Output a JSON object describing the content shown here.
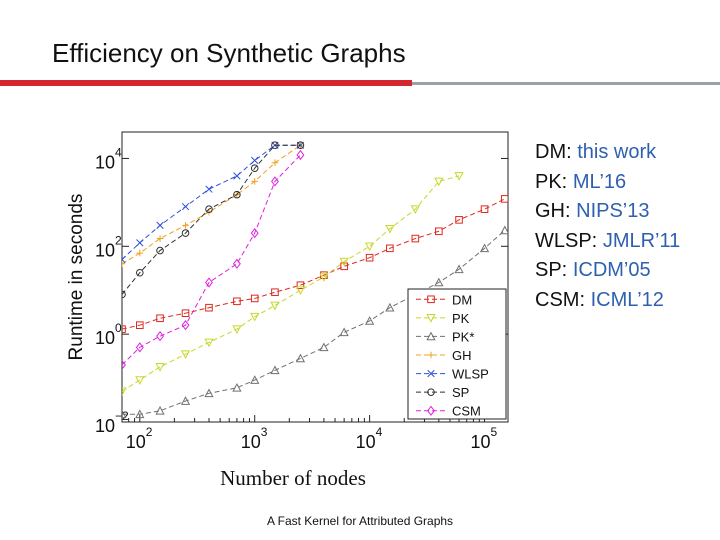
{
  "slide": {
    "title": "Efficiency on Synthetic Graphs",
    "footer": "A Fast Kernel for Attributed Graphs",
    "accent_color": "#d2282e"
  },
  "references": [
    {
      "method": "DM:",
      "source": "this work"
    },
    {
      "method": "PK:",
      "source": "ML’16"
    },
    {
      "method": "GH:",
      "source": "NIPS’13"
    },
    {
      "method": "WLSP:",
      "source": "JMLR’11"
    },
    {
      "method": "SP:",
      "source": "ICDM’05"
    },
    {
      "method": "CSM:",
      "source": "ICML’12"
    }
  ],
  "chart_data": {
    "type": "line",
    "xscale": "log",
    "yscale": "log",
    "xlabel": "Number of nodes",
    "ylabel": "Runtime in seconds",
    "xlim": [
      70,
      160000
    ],
    "ylim": [
      0.01,
      40000
    ],
    "x_ticks": [
      {
        "value": 100,
        "base": "10",
        "exp": "2"
      },
      {
        "value": 1000,
        "base": "10",
        "exp": "3"
      },
      {
        "value": 10000,
        "base": "10",
        "exp": "4"
      },
      {
        "value": 100000,
        "base": "10",
        "exp": "5"
      }
    ],
    "y_ticks": [
      {
        "value": 0.01,
        "base": "10",
        "exp": "−2"
      },
      {
        "value": 1,
        "base": "10",
        "exp": "0"
      },
      {
        "value": 100,
        "base": "10",
        "exp": "2"
      },
      {
        "value": 10000,
        "base": "10",
        "exp": "4"
      }
    ],
    "legend_position": "bottom-right",
    "series": [
      {
        "name": "DM",
        "color": "#e0281e",
        "marker": "square",
        "x": [
          70,
          100,
          150,
          250,
          400,
          700,
          1000,
          1500,
          2500,
          4000,
          6000,
          10000,
          15000,
          25000,
          40000,
          60000,
          100000,
          150000
        ],
        "y": [
          1.3,
          1.6,
          2.3,
          3.0,
          4.0,
          5.6,
          6.5,
          9.0,
          13,
          22,
          35,
          55,
          90,
          150,
          220,
          400,
          700,
          1200
        ]
      },
      {
        "name": "PK",
        "color": "#c8d828",
        "marker": "triangle-down",
        "x": [
          70,
          100,
          150,
          250,
          400,
          700,
          1000,
          1500,
          2500,
          4000,
          6000,
          10000,
          15000,
          25000,
          40000,
          60000
        ],
        "y": [
          0.05,
          0.09,
          0.18,
          0.35,
          0.65,
          1.3,
          2.5,
          4.5,
          10,
          20,
          45,
          100,
          250,
          700,
          3000,
          4000
        ]
      },
      {
        "name": "PK*",
        "color": "#707070",
        "marker": "triangle-up",
        "x": [
          70,
          100,
          150,
          250,
          400,
          700,
          1000,
          1500,
          2500,
          4000,
          6000,
          10000,
          15000,
          25000,
          40000,
          60000,
          100000,
          150000
        ],
        "y": [
          0.015,
          0.015,
          0.018,
          0.03,
          0.045,
          0.06,
          0.09,
          0.15,
          0.28,
          0.5,
          1.1,
          2.0,
          4.0,
          8.0,
          15,
          30,
          90,
          230
        ]
      },
      {
        "name": "GH",
        "color": "#f0a020",
        "marker": "plus",
        "x": [
          70,
          100,
          150,
          250,
          400,
          700,
          1000,
          1500,
          2500
        ],
        "y": [
          40,
          70,
          150,
          300,
          600,
          1500,
          3000,
          8000,
          20000
        ]
      },
      {
        "name": "WLSP",
        "color": "#2e4fd8",
        "marker": "x",
        "x": [
          70,
          100,
          150,
          250,
          400,
          700,
          1000,
          1500,
          2500
        ],
        "y": [
          50,
          120,
          300,
          800,
          2000,
          4000,
          9000,
          20000,
          20000
        ]
      },
      {
        "name": "SP",
        "color": "#303030",
        "marker": "circle",
        "x": [
          70,
          100,
          150,
          250,
          400,
          700,
          1000,
          1500,
          2500
        ],
        "y": [
          8,
          25,
          80,
          200,
          700,
          1500,
          6000,
          20000,
          20000
        ]
      },
      {
        "name": "CSM",
        "color": "#e020e0",
        "marker": "diamond",
        "x": [
          70,
          100,
          150,
          250,
          400,
          700,
          1000,
          1500,
          2500
        ],
        "y": [
          0.2,
          0.5,
          0.9,
          1.6,
          15,
          40,
          200,
          3000,
          12000
        ]
      }
    ]
  }
}
